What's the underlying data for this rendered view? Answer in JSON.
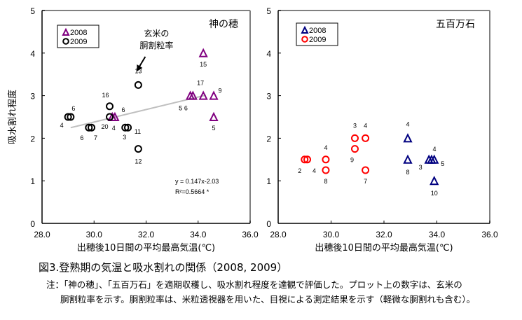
{
  "figure": {
    "caption": "図3.登熟期の気温と吸水割れの関係（2008, 2009）",
    "note_line1": "注：「神の穂」、「五百万石」を適期収穫し、吸水割れ程度を達観で評価した。プロット上の数字は、玄米の",
    "note_line2": "胴割粒率を示す。胴割粒率は、米粒透視器を用いた、目視による測定結果を示す（軽微な胴割れも含む）。"
  },
  "chart_data": [
    {
      "type": "scatter",
      "title": "神の穂",
      "xlabel": "出穂後10日間の平均最高気温(℃)",
      "ylabel": "吸水割れ程度",
      "xlim": [
        28.0,
        36.0
      ],
      "ylim": [
        0,
        5
      ],
      "xticks": [
        "28.0",
        "30.0",
        "32.0",
        "34.0",
        "36.0"
      ],
      "yticks": [
        "0",
        "1",
        "2",
        "3",
        "4",
        "5"
      ],
      "grid": false,
      "legend_position": "top-left",
      "annotation": "玄米の\n胴割粒率",
      "trendline": {
        "slope": 0.147,
        "intercept": -2.03,
        "x_range": [
          29.1,
          34.3
        ],
        "equation": "y = 0.147x-2.03",
        "r2": "R²=0.5664 *",
        "color": "#bfbfbf"
      },
      "series": [
        {
          "name": "2008",
          "marker": "triangle",
          "color": "#800080",
          "points": [
            {
              "x": 30.7,
              "y": 2.5,
              "label": "4"
            },
            {
              "x": 30.8,
              "y": 2.5,
              "label": "6"
            },
            {
              "x": 33.7,
              "y": 3.0,
              "label": "5"
            },
            {
              "x": 33.8,
              "y": 3.0,
              "label": "6"
            },
            {
              "x": 34.2,
              "y": 3.0,
              "label": "17"
            },
            {
              "x": 34.6,
              "y": 3.0,
              "label": "9"
            },
            {
              "x": 34.2,
              "y": 4.0,
              "label": "15"
            },
            {
              "x": 34.6,
              "y": 2.5,
              "label": "5"
            }
          ]
        },
        {
          "name": "2009",
          "marker": "circle",
          "color": "#000000",
          "points": [
            {
              "x": 29.0,
              "y": 2.5,
              "label": "4"
            },
            {
              "x": 29.1,
              "y": 2.5,
              "label": "6"
            },
            {
              "x": 29.8,
              "y": 2.25,
              "label": "6"
            },
            {
              "x": 29.9,
              "y": 2.25,
              "label": "7"
            },
            {
              "x": 30.6,
              "y": 2.75,
              "label": "16"
            },
            {
              "x": 30.6,
              "y": 2.5,
              "label": "20"
            },
            {
              "x": 31.2,
              "y": 2.25,
              "label": "3"
            },
            {
              "x": 31.3,
              "y": 2.25,
              "label": "11"
            },
            {
              "x": 31.7,
              "y": 3.25,
              "label": "13"
            },
            {
              "x": 31.7,
              "y": 1.75,
              "label": "12"
            }
          ]
        }
      ]
    },
    {
      "type": "scatter",
      "title": "五百万石",
      "xlabel": "出穂後10日間の平均最高気温(℃)",
      "ylabel": "",
      "xlim": [
        28.0,
        36.0
      ],
      "ylim": [
        0,
        5
      ],
      "xticks": [
        "28.0",
        "30.0",
        "32.0",
        "34.0",
        "36.0"
      ],
      "yticks": [
        "0",
        "1",
        "2",
        "3",
        "4",
        "5"
      ],
      "grid": false,
      "legend_position": "top-left",
      "series": [
        {
          "name": "2008",
          "marker": "triangle",
          "color": "#000080",
          "points": [
            {
              "x": 32.9,
              "y": 2.0,
              "label": "4"
            },
            {
              "x": 32.9,
              "y": 1.5,
              "label": "8"
            },
            {
              "x": 33.7,
              "y": 1.5,
              "label": "3"
            },
            {
              "x": 33.8,
              "y": 1.5,
              "label": "4"
            },
            {
              "x": 33.9,
              "y": 1.5,
              "label": "5"
            },
            {
              "x": 33.9,
              "y": 1.0,
              "label": "10"
            }
          ]
        },
        {
          "name": "2009",
          "marker": "circle",
          "color": "#ff0000",
          "points": [
            {
              "x": 29.0,
              "y": 1.5,
              "label": "2"
            },
            {
              "x": 29.1,
              "y": 1.5,
              "label": "4"
            },
            {
              "x": 29.8,
              "y": 1.5,
              "label": "4"
            },
            {
              "x": 29.8,
              "y": 1.25,
              "label": "8"
            },
            {
              "x": 30.9,
              "y": 2.0,
              "label": "3"
            },
            {
              "x": 31.3,
              "y": 2.0,
              "label": "4"
            },
            {
              "x": 30.9,
              "y": 1.75,
              "label": "9"
            },
            {
              "x": 31.3,
              "y": 1.25,
              "label": "7"
            }
          ]
        }
      ]
    }
  ]
}
